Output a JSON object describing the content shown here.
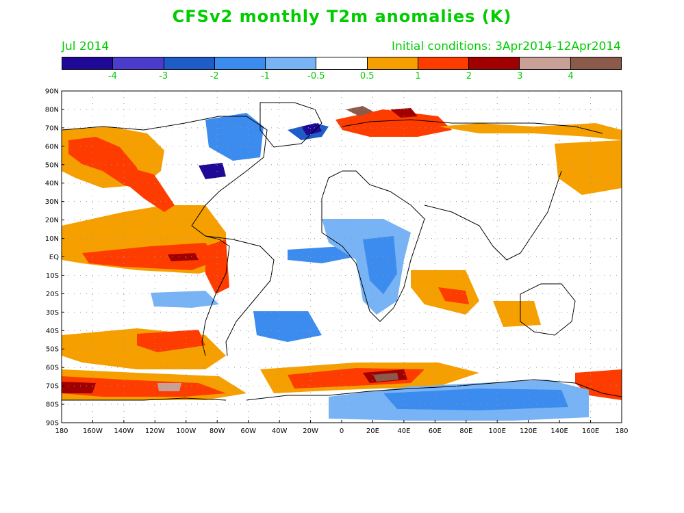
{
  "title": "CFSv2 monthly T2m anomalies (K)",
  "subtitle_left": "Jul 2014",
  "subtitle_right": "Initial conditions: 3Apr2014-12Apr2014",
  "text_color": "#00cc00",
  "colorbar": {
    "colors": [
      "#1e0a96",
      "#4b3ccc",
      "#1e5cc8",
      "#3c8cf0",
      "#78b4f5",
      "#ffffff",
      "#f5a000",
      "#ff3c00",
      "#a00000",
      "#c8a096",
      "#8c5a4b"
    ],
    "labels": [
      "-4",
      "-3",
      "-2",
      "-1",
      "-0.5",
      "0.5",
      "1",
      "2",
      "3",
      "4"
    ]
  },
  "map": {
    "lat_labels": [
      "90N",
      "80N",
      "70N",
      "60N",
      "50N",
      "40N",
      "30N",
      "20N",
      "10N",
      "EQ",
      "10S",
      "20S",
      "30S",
      "40S",
      "50S",
      "60S",
      "70S",
      "80S",
      "90S"
    ],
    "lon_labels": [
      "180",
      "160W",
      "140W",
      "120W",
      "100W",
      "80W",
      "60W",
      "40W",
      "20W",
      "0",
      "20E",
      "40E",
      "60E",
      "80E",
      "100E",
      "120E",
      "140E",
      "160E",
      "180"
    ]
  }
}
